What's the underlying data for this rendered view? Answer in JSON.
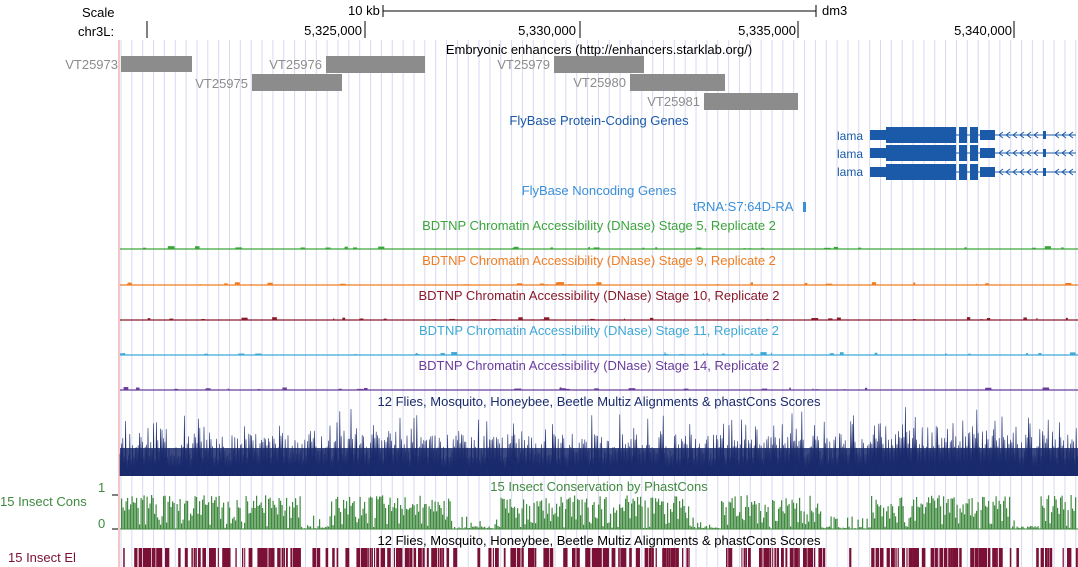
{
  "ruler": {
    "scale_label": "Scale",
    "scale_value": "10 kb",
    "assembly": "dm3",
    "chrom_label": "chr3L:",
    "ticks": [
      "5,325,000",
      "5,330,000",
      "5,335,000",
      "5,340,000"
    ]
  },
  "enhancers": {
    "title": "Embryonic enhancers (http://enhancers.starklab.org/)",
    "items": [
      {
        "name": "VT25973"
      },
      {
        "name": "VT25975"
      },
      {
        "name": "VT25976"
      },
      {
        "name": "VT25979"
      },
      {
        "name": "VT25980"
      },
      {
        "name": "VT25981"
      }
    ]
  },
  "coding_genes": {
    "title": "FlyBase Protein-Coding Genes",
    "genes": [
      "lama",
      "lama",
      "lama"
    ]
  },
  "noncoding_genes": {
    "title": "FlyBase Noncoding Genes",
    "gene": "tRNA:S7:64D-RA"
  },
  "dnase_tracks": [
    {
      "title": "BDTNP Chromatin Accessibility (DNase) Stage 5, Replicate 2",
      "color": "#3aa63a"
    },
    {
      "title": "BDTNP Chromatin Accessibility (DNase) Stage 9, Replicate 2",
      "color": "#f07d22"
    },
    {
      "title": "BDTNP Chromatin Accessibility (DNase) Stage 10, Replicate 2",
      "color": "#8b1a2a"
    },
    {
      "title": "BDTNP Chromatin Accessibility (DNase) Stage 11, Replicate 2",
      "color": "#3fa9d6"
    },
    {
      "title": "BDTNP Chromatin Accessibility (DNase) Stage 14, Replicate 2",
      "color": "#6a3d9a"
    }
  ],
  "multiz": {
    "title": "12 Flies, Mosquito, Honeybee, Beetle Multiz Alignments & phastCons Scores",
    "color": "#1a2a6c"
  },
  "insect_cons": {
    "title": "15 Insect Conservation by PhastCons",
    "side_label": "15 Insect Cons",
    "y_max": "1",
    "y_min": "0",
    "color": "#3f8a3f"
  },
  "insect_el": {
    "title": "12 Flies, Mosquito, Honeybee, Beetle Multiz Alignments & phastCons Scores",
    "side_label": "15 Insect El",
    "color": "#7a1035"
  },
  "colors": {
    "gene": "#1a5aa8",
    "noncoding": "#3a8fd6",
    "enhancer": "#8c8c8c",
    "grid": "#d8d8f2",
    "left_edge": "#f4b4b4"
  }
}
